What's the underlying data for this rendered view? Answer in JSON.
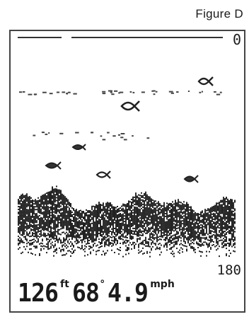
{
  "caption": "Figure D",
  "range": {
    "top": "0",
    "bottom": "180"
  },
  "readouts": {
    "depth": {
      "value": "126",
      "unit": "ft"
    },
    "temperature": {
      "value": "68",
      "unit": "°"
    },
    "speed": {
      "value": "4.9",
      "unit": "mph"
    }
  },
  "icons": {
    "fish": "fish-icon",
    "bottom": "bottom-contour"
  },
  "colors": {
    "pixel": "#1a1a1a",
    "screen": "#ffffff"
  }
}
